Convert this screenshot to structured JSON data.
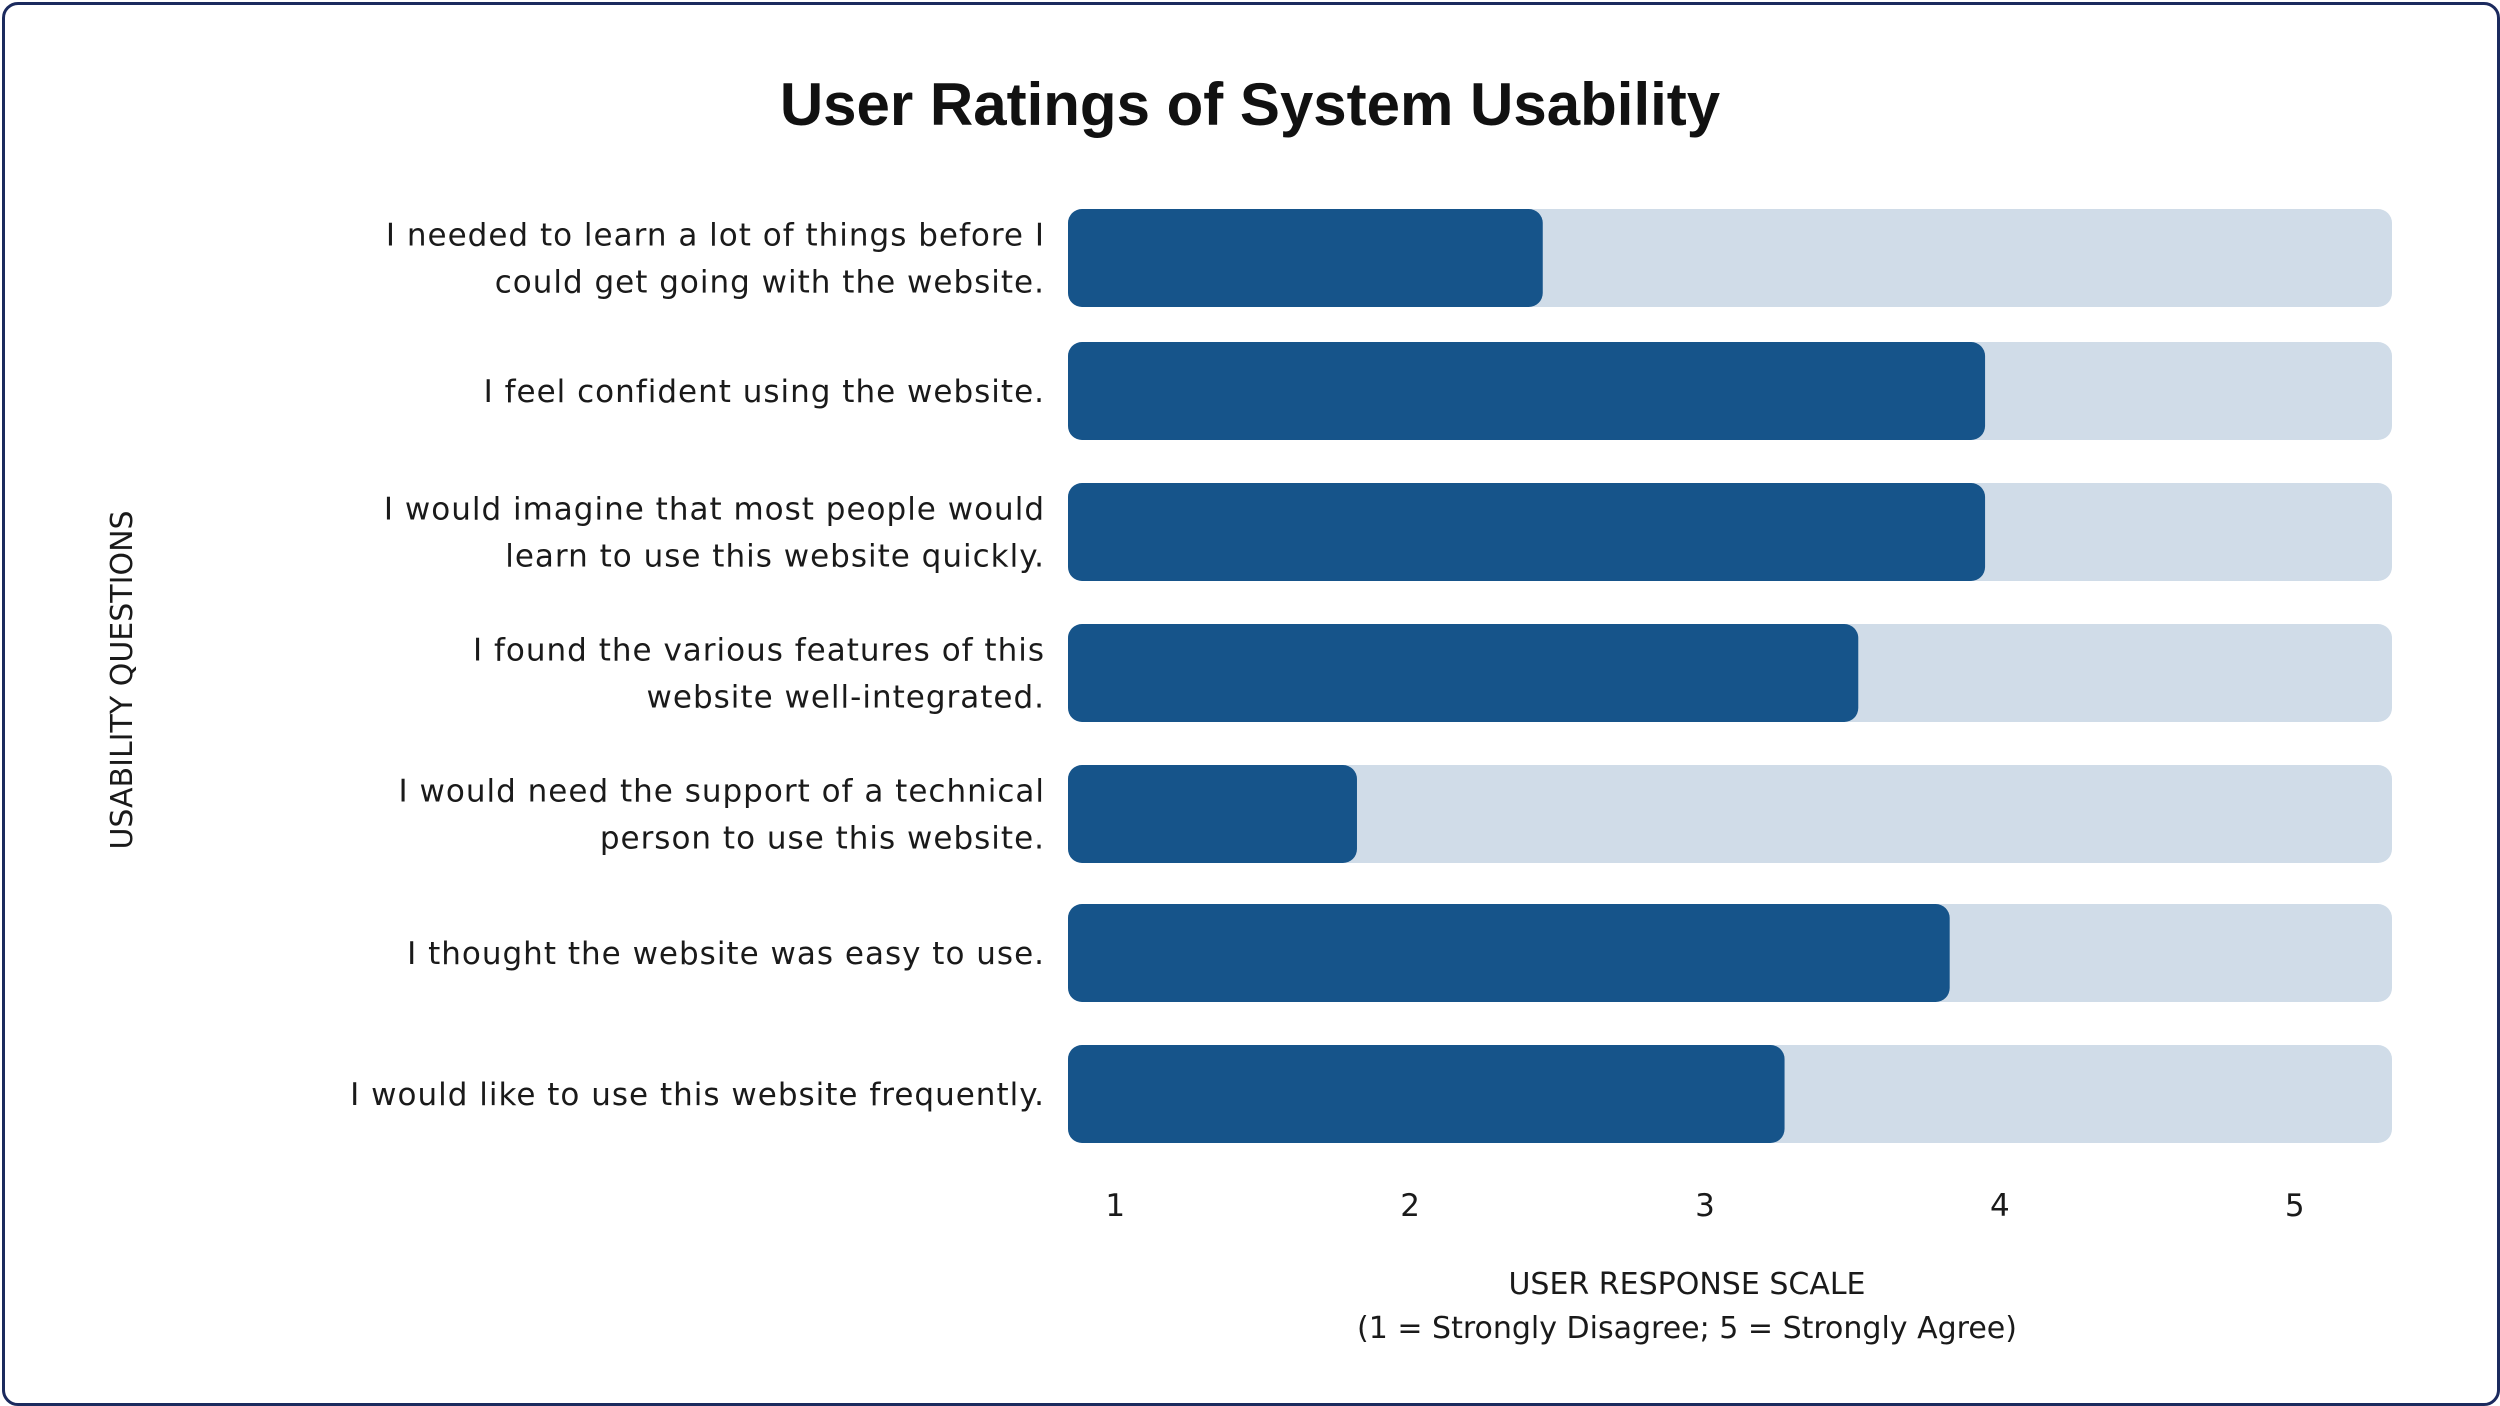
{
  "chart_data": {
    "type": "bar",
    "orientation": "horizontal",
    "title": "User Ratings of System Usability",
    "categories": [
      [
        "I needed to learn a lot of things before I",
        "could get going with the website."
      ],
      [
        "I feel confident using the website."
      ],
      [
        "I would imagine that most people would",
        "learn to use this website quickly."
      ],
      [
        "I found the various features of this",
        "website well-integrated."
      ],
      [
        "I would need the support of a technical",
        "person to use this website."
      ],
      [
        "I thought the website was easy to use."
      ],
      [
        "I would like to use this website frequently."
      ]
    ],
    "values": [
      2.45,
      3.95,
      3.95,
      3.52,
      1.82,
      3.83,
      3.27
    ],
    "xlim": [
      0.84,
      5.33
    ],
    "xticks": [
      "1",
      "2",
      "3",
      "4",
      "5"
    ],
    "xlabel": "USER RESPONSE SCALE",
    "xlabel_sub": "(1 = Strongly Disagree; 5 = Strongly Agree)",
    "ylabel": "USABILITY QUESTIONS",
    "colors": {
      "bar": "#16548a",
      "track": "#d0dce8",
      "border": "#1b2a5e",
      "text": "#1a1a1a"
    },
    "legend": "none",
    "grid": false
  }
}
